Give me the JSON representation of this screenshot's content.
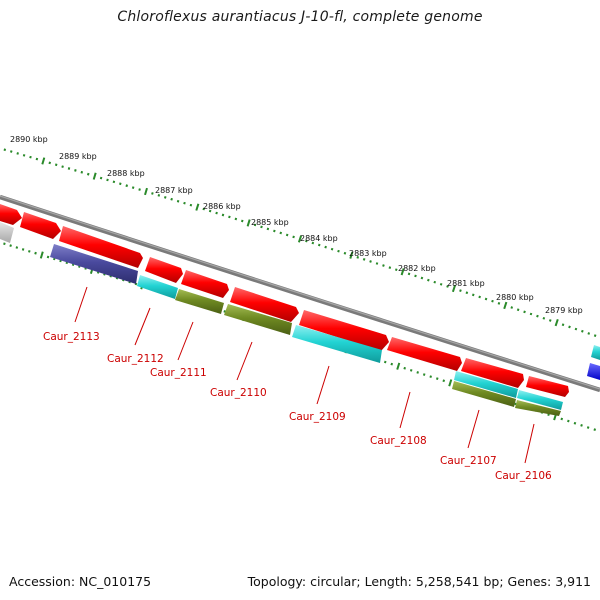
{
  "title": "Chloroflexus aurantiacus J-10-fl, complete genome",
  "footer": {
    "accession": "Accession: NC_010175",
    "summary": "Topology: circular; Length: 5,258,541 bp; Genes: 3,911"
  },
  "scale_ticks": [
    "2890 kbp",
    "2889 kbp",
    "2888 kbp",
    "2887 kbp",
    "2886 kbp",
    "2885 kbp",
    "2884 kbp",
    "2883 kbp",
    "2882 kbp",
    "2881 kbp",
    "2880 kbp",
    "2879 kbp"
  ],
  "gene_labels": [
    "Caur_2113",
    "Caur_2112",
    "Caur_2111",
    "Caur_2110",
    "Caur_2109",
    "Caur_2108",
    "Caur_2107",
    "Caur_2106"
  ],
  "colors": {
    "backbone": "#8c8c8c",
    "tick": "#2a8a2a",
    "label": "#cc0000",
    "forward_gene": "#ff0000",
    "cyan_gene": "#22d3d3",
    "olive_gene": "#6f8a22",
    "indigo_gene": "#4a4a9e",
    "gray_gene": "#c8c8c8",
    "blue_gene": "#1d1dff"
  }
}
